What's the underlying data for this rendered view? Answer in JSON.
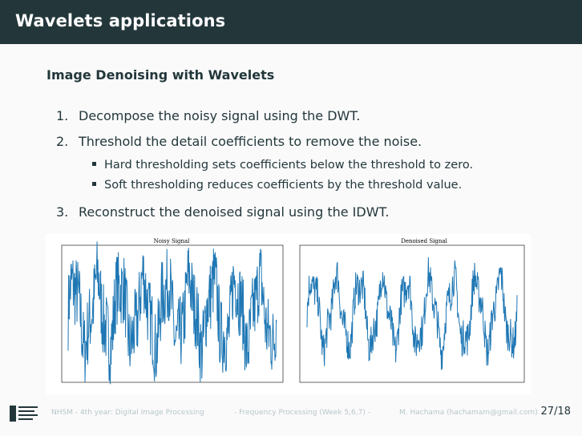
{
  "slide": {
    "title": "Wavelets applications",
    "subtitle": "Image Denoising with Wavelets",
    "steps": [
      {
        "num": "1.",
        "text": "Decompose the noisy signal using the DWT."
      },
      {
        "num": "2.",
        "text": "Threshold the detail coefficients to remove the noise."
      },
      {
        "num": "3.",
        "text": "Reconstruct the denoised signal using the IDWT."
      }
    ],
    "bullets": [
      "Hard thresholding sets coefficients below the threshold to zero.",
      "Soft thresholding reduces coefficients by the threshold value."
    ]
  },
  "figure": {
    "line_color": "#1f77b4",
    "left_plot": {
      "title": "Noisy Signal"
    },
    "right_plot": {
      "title": "Denoised Signal"
    }
  },
  "footer": {
    "course": "NHSM - 4th year: Digital Image Processing",
    "section": "- Frequency Processing (Week 5,6,7) -",
    "author": "M. Hachama (hachamam@gmail.com)",
    "page": "27/18"
  }
}
